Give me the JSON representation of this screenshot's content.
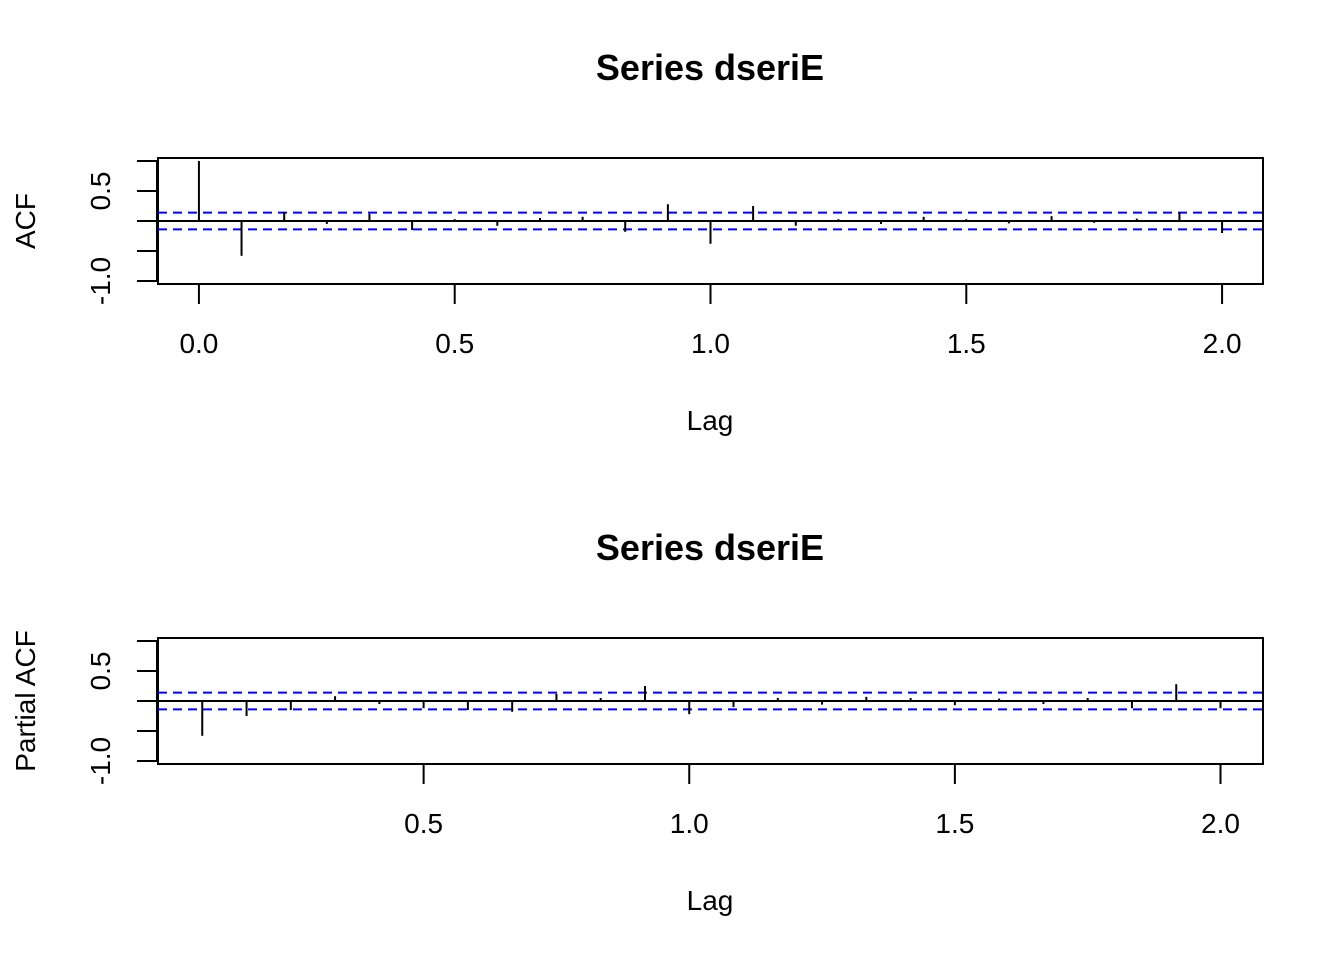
{
  "chart_data": [
    {
      "type": "bar",
      "subtype": "acf",
      "title": "Series  dseriE",
      "xlabel": "Lag",
      "ylabel": "ACF",
      "xlim": [
        -0.08,
        2.08
      ],
      "ylim": [
        -1.05,
        1.05
      ],
      "xticks": [
        "0.0",
        "0.5",
        "1.0",
        "1.5",
        "2.0"
      ],
      "xtick_values": [
        0.0,
        0.5,
        1.0,
        1.5,
        2.0
      ],
      "yticks": [
        "-1.0",
        "0.5"
      ],
      "ytick_values": [
        -1.0,
        0.5
      ],
      "ci": 0.14,
      "lags": [
        0.0,
        0.0833,
        0.1667,
        0.25,
        0.3333,
        0.4167,
        0.5,
        0.5833,
        0.6667,
        0.75,
        0.8333,
        0.9167,
        1.0,
        1.0833,
        1.1667,
        1.25,
        1.3333,
        1.4167,
        1.5,
        1.5833,
        1.6667,
        1.75,
        1.8333,
        1.9167,
        2.0
      ],
      "values": [
        1.0,
        -0.58,
        0.15,
        -0.05,
        0.12,
        -0.15,
        0.03,
        -0.08,
        0.05,
        0.07,
        -0.18,
        0.28,
        -0.38,
        0.25,
        -0.08,
        0.03,
        -0.05,
        0.07,
        0.03,
        -0.04,
        0.08,
        -0.03,
        0.04,
        0.14,
        -0.2
      ],
      "ci_color": "#0000ff",
      "bar_color": "#000000"
    },
    {
      "type": "bar",
      "subtype": "pacf",
      "title": "Series  dseriE",
      "xlabel": "Lag",
      "ylabel": "Partial ACF",
      "xlim": [
        0.0,
        2.08
      ],
      "ylim": [
        -1.05,
        1.05
      ],
      "xticks": [
        "0.5",
        "1.0",
        "1.5",
        "2.0"
      ],
      "xtick_values": [
        0.5,
        1.0,
        1.5,
        2.0
      ],
      "yticks": [
        "-1.0",
        "0.5"
      ],
      "ytick_values": [
        -1.0,
        0.5
      ],
      "ci": 0.14,
      "lags": [
        0.0833,
        0.1667,
        0.25,
        0.3333,
        0.4167,
        0.5,
        0.5833,
        0.6667,
        0.75,
        0.8333,
        0.9167,
        1.0,
        1.0833,
        1.1667,
        1.25,
        1.3333,
        1.4167,
        1.5,
        1.5833,
        1.6667,
        1.75,
        1.8333,
        1.9167,
        2.0
      ],
      "values": [
        -0.58,
        -0.25,
        -0.15,
        0.08,
        -0.05,
        -0.12,
        -0.15,
        -0.18,
        0.12,
        0.05,
        0.25,
        -0.22,
        -0.1,
        0.05,
        -0.06,
        0.07,
        0.05,
        -0.07,
        0.04,
        -0.05,
        0.05,
        -0.12,
        0.28,
        -0.12
      ],
      "ci_color": "#0000ff",
      "bar_color": "#000000"
    }
  ]
}
